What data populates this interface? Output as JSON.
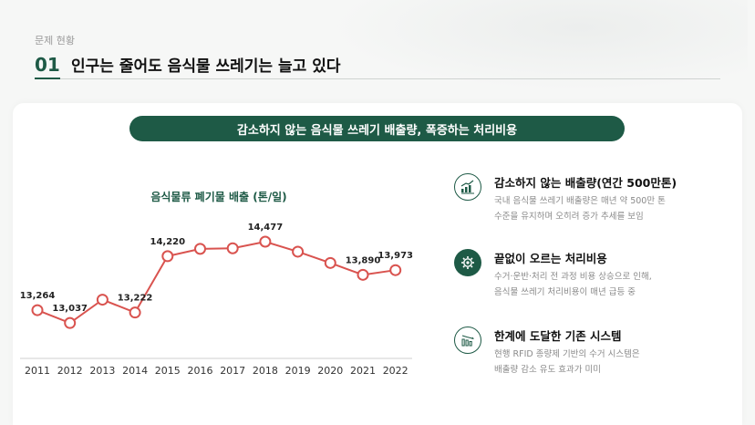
{
  "header": {
    "section_label": "문제 현황",
    "number": "01",
    "title": "인구는 줄어도 음식물 쓰레기는 늘고 있다"
  },
  "banner": "감소하지 않는 음식물 쓰레기 배출량, 폭증하는 처리비용",
  "chart_data": {
    "type": "line",
    "title": "음식물류 폐기물 배출 (톤/일)",
    "categories": [
      "2011",
      "2012",
      "2013",
      "2014",
      "2015",
      "2016",
      "2017",
      "2018",
      "2019",
      "2020",
      "2021",
      "2022"
    ],
    "values": [
      13264,
      13037,
      13450,
      13222,
      14220,
      14350,
      14360,
      14477,
      14300,
      14100,
      13890,
      13973
    ],
    "labels": [
      "13,264",
      "13,037",
      "",
      "13,222",
      "14,220",
      "",
      "",
      "14,477",
      "",
      "",
      "13,890",
      "13,973"
    ],
    "ylim": [
      12700,
      14800
    ],
    "grid": false,
    "color": "#d9534f"
  },
  "features": [
    {
      "icon": "chart-icon",
      "title": "감소하지 않는 배출량(연간 500만톤)",
      "desc": [
        "국내 음식물 쓰레기 배출량은 매년 약 500만 톤",
        "수준을 유지하며 오히려 증가 추세를 보임"
      ]
    },
    {
      "icon": "gear-icon",
      "title": "끝없이 오르는 처리비용",
      "desc": [
        "수거·운반·처리 전 과정 비용 상승으로 인해,",
        "음식물 쓰레기 처리비용이 매년 급등 중"
      ]
    },
    {
      "icon": "bar-chart-icon",
      "title": "한계에 도달한 기존 시스템",
      "desc": [
        "현행 RFID 종량제 기반의 수거 시스템은",
        "배출량 감소 유도 효과가 미미"
      ]
    }
  ],
  "colors": {
    "primary": "#1e5a46",
    "line": "#d9534f"
  }
}
